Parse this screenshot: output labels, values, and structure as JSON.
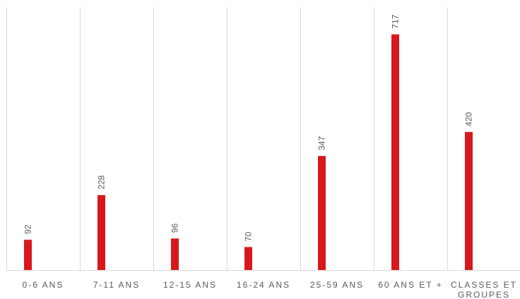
{
  "chart_data": {
    "type": "bar",
    "categories": [
      [
        "0-6 ANS"
      ],
      [
        "7-11 ANS"
      ],
      [
        "12-15 ANS"
      ],
      [
        "16-24 ANS"
      ],
      [
        "25-59 ANS"
      ],
      [
        "60 ANS ET +"
      ],
      [
        "CLASSES ET",
        "GROUPES"
      ]
    ],
    "values": [
      92,
      228,
      96,
      70,
      347,
      717,
      420
    ],
    "data_labels": [
      "92",
      "228",
      "96",
      "70",
      "347",
      "717",
      "420"
    ],
    "title": "",
    "xlabel": "",
    "ylabel": "",
    "ylim": [
      0,
      800
    ],
    "grid": "vertical",
    "legend": "none",
    "bar_color": "#d7191c",
    "grid_color": "#d9d9d9",
    "text_color": "#595959"
  }
}
